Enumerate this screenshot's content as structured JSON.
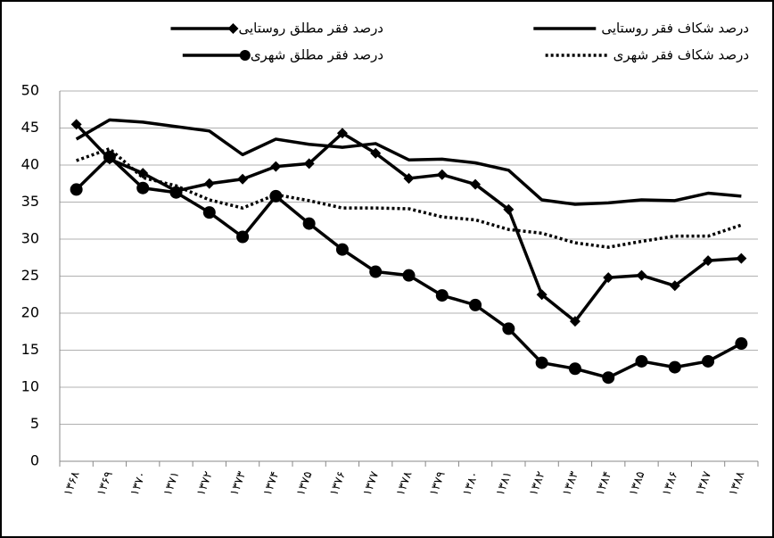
{
  "chart_data": {
    "type": "line",
    "categories": [
      "۱۳۶۸",
      "۱۳۶۹",
      "۱۳۷۰",
      "۱۳۷۱",
      "۱۳۷۲",
      "۱۳۷۳",
      "۱۳۷۴",
      "۱۳۷۵",
      "۱۳۷۶",
      "۱۳۷۷",
      "۱۳۷۸",
      "۱۳۷۹",
      "۱۳۸۰",
      "۱۳۸۱",
      "۱۳۸۲",
      "۱۳۸۳",
      "۱۳۸۴",
      "۱۳۸۵",
      "۱۳۸۶",
      "۱۳۸۷",
      "۱۳۸۸"
    ],
    "series": [
      {
        "name": "درصد فقر مطلق روستایی",
        "color": "#000000",
        "marker": "diamond",
        "dash": "solid",
        "values": [
          45.5,
          40.8,
          38.9,
          36.5,
          37.5,
          38.1,
          39.8,
          40.2,
          44.3,
          41.6,
          38.2,
          38.7,
          37.4,
          34.0,
          22.5,
          18.9,
          24.8,
          25.1,
          23.7,
          27.1,
          27.4
        ]
      },
      {
        "name": "درصد شکاف فقر روستایی",
        "color": "#000000",
        "marker": "none",
        "dash": "solid",
        "values": [
          43.5,
          46.1,
          45.8,
          45.2,
          44.6,
          41.4,
          43.5,
          42.8,
          42.4,
          42.9,
          40.7,
          40.8,
          40.3,
          39.3,
          35.3,
          34.7,
          34.9,
          35.3,
          35.2,
          36.2,
          35.8
        ]
      },
      {
        "name": "درصد فقر مطلق شهری",
        "color": "#000000",
        "marker": "circle",
        "dash": "solid",
        "values": [
          36.7,
          41.1,
          36.9,
          36.3,
          33.6,
          30.3,
          35.8,
          32.1,
          28.6,
          25.6,
          25.1,
          22.4,
          21.1,
          17.9,
          13.3,
          12.5,
          11.3,
          13.5,
          12.7,
          13.5,
          15.9
        ]
      },
      {
        "name": "درصد شکاف فقر شهری",
        "color": "#000000",
        "marker": "none",
        "dash": "dotted",
        "values": [
          40.6,
          42.2,
          38.3,
          37.2,
          35.3,
          34.2,
          36.0,
          35.2,
          34.2,
          34.2,
          34.1,
          33.0,
          32.6,
          31.3,
          30.8,
          29.5,
          28.9,
          29.7,
          30.4,
          30.4,
          31.9
        ]
      }
    ],
    "ylim": [
      0,
      50
    ],
    "yticks": [
      0,
      5,
      10,
      15,
      20,
      25,
      30,
      35,
      40,
      45,
      50
    ],
    "grid": true,
    "legend": "top"
  }
}
